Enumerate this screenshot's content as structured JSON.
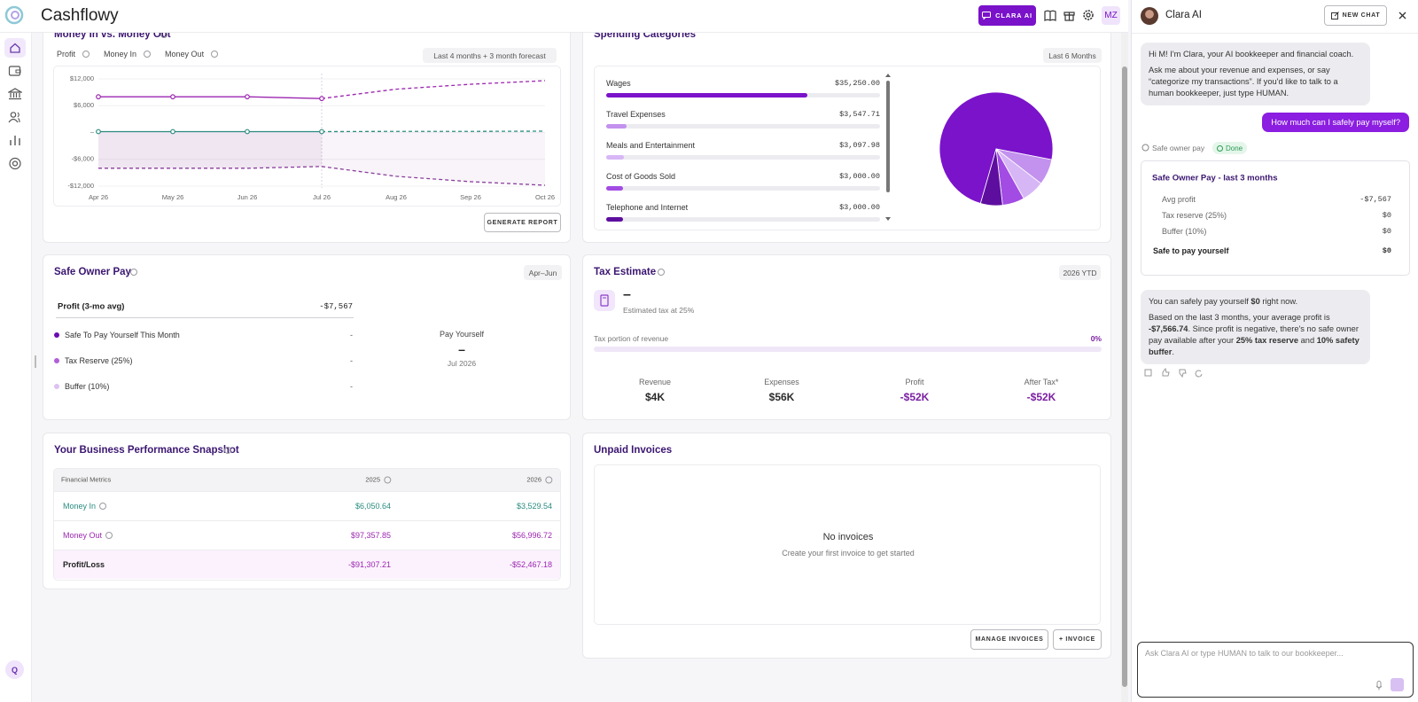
{
  "header": {
    "brand": "Cashflowy",
    "clara_button": "CLARA AI",
    "avatar": "MZ"
  },
  "sidebar": {
    "user_badge": "Q"
  },
  "chart_data": [
    {
      "type": "line",
      "title": "Money In vs. Money Out",
      "subtitle": "Last 4 months + 3 month forecast",
      "categories": [
        "Apr 26",
        "May 26",
        "Jun 26",
        "Jul 26",
        "Aug 26",
        "Sep 26",
        "Oct 26"
      ],
      "series": [
        {
          "name": "Profit",
          "color": "#8a3d9c",
          "dashed": true,
          "area": true,
          "values": [
            -8000,
            -8000,
            -8000,
            -7600,
            null,
            null,
            null
          ],
          "forecast": [
            null,
            null,
            null,
            -7600,
            -9800,
            -11000,
            -11800
          ]
        },
        {
          "name": "Money In",
          "color": "#2e8b80",
          "markers": true,
          "values": [
            200,
            200,
            200,
            200,
            null,
            null,
            null
          ],
          "forecast": [
            null,
            null,
            null,
            200,
            250,
            250,
            300
          ]
        },
        {
          "name": "Money Out",
          "color": "#9c27b0",
          "markers": true,
          "values": [
            8000,
            8000,
            8000,
            7600,
            null,
            null,
            null
          ],
          "forecast": [
            null,
            null,
            null,
            7600,
            9700,
            10800,
            11600
          ]
        }
      ],
      "ylim": [
        -12000,
        12000
      ],
      "yticks": [
        {
          "value": 12000,
          "label": "$12,000"
        },
        {
          "value": 6000,
          "label": "$6,000"
        },
        {
          "value": 0,
          "label": "–"
        },
        {
          "value": -6000,
          "label": "-$6,000"
        },
        {
          "value": -12000,
          "label": "-$12,000"
        }
      ],
      "grid": true,
      "legend": "top-left"
    },
    {
      "type": "pie",
      "title": "Spending Categories",
      "subtitle": "Last 6 Months",
      "categories": [
        "Wages",
        "Travel Expenses",
        "Meals and Entertainment",
        "Cost of Goods Sold",
        "Telephone and Internet"
      ],
      "values": [
        35250,
        3547.71,
        3097.98,
        3000,
        3000
      ],
      "value_labels": [
        "$35,250.00",
        "$3,547.71",
        "$3,097.98",
        "$3,000.00",
        "$3,000.00"
      ],
      "colors": [
        "#7b13ca",
        "#c391ee",
        "#d7b6f6",
        "#a24ce3",
        "#5d0e9f"
      ]
    }
  ],
  "money_card": {
    "button": "GENERATE REPORT"
  },
  "safe_owner_pay": {
    "title": "Safe Owner Pay",
    "period": "Apr–Jun",
    "profit_label": "Profit (3-mo avg)",
    "profit_value": "-$7,567",
    "items": [
      {
        "label": "Safe To Pay Yourself This Month",
        "value": "-",
        "color": "#6a0dad"
      },
      {
        "label": "Tax Reserve (25%)",
        "value": "-",
        "color": "#b35fd8"
      },
      {
        "label": "Buffer (10%)",
        "value": "-",
        "color": "#dcc2f2"
      }
    ],
    "pay_label": "Pay Yourself",
    "pay_value": "–",
    "pay_date": "Jul 2026"
  },
  "tax_estimate": {
    "title": "Tax Estimate",
    "period": "2026 YTD",
    "amount": "–",
    "note": "Estimated tax at 25%",
    "portion_label": "Tax portion of revenue",
    "portion_value": "0%",
    "stats": [
      {
        "label": "Revenue",
        "value": "$4K",
        "color": "#2b2b2b"
      },
      {
        "label": "Expenses",
        "value": "$56K",
        "color": "#2b2b2b"
      },
      {
        "label": "Profit",
        "value": "-$52K",
        "color": "#7b1fa2"
      },
      {
        "label": "After Tax*",
        "value": "-$52K",
        "color": "#7b1fa2"
      }
    ]
  },
  "snapshot": {
    "title": "Your Business Performance Snapshot",
    "header": [
      "Financial Metrics",
      "2025",
      "2026"
    ],
    "rows": [
      {
        "cells": [
          "Money In",
          "$6,050.64",
          "$3,529.54"
        ],
        "color": "#2a8c80",
        "value_color": "#2a8c80",
        "info": true
      },
      {
        "cells": [
          "Money Out",
          "$97,357.85",
          "$56,996.72"
        ],
        "color": "#9c27b0",
        "value_color": "#9c27b0",
        "info": true
      },
      {
        "cells": [
          "Profit/Loss",
          "-$91,307.21",
          "-$52,467.18"
        ],
        "color": "#222222",
        "value_color": "#9c27b0",
        "bold": true
      }
    ]
  },
  "invoices": {
    "title": "Unpaid Invoices",
    "empty_title": "No invoices",
    "empty_text": "Create your first invoice to get started",
    "manage_button": "MANAGE INVOICES",
    "add_button": "+ INVOICE"
  },
  "chat": {
    "title": "Clara AI",
    "new_chat": "NEW CHAT",
    "greeting": [
      "Hi M! I'm Clara, your AI bookkeeper and financial coach.",
      "Ask me about your revenue and expenses, or say “categorize my transactions”. If you'd like to talk to a human bookkeeper, just type HUMAN."
    ],
    "user_message": "How much can I safely pay myself?",
    "tool": {
      "label": "Safe owner pay",
      "status": "Done"
    },
    "summary": {
      "title": "Safe Owner Pay - last 3 months",
      "rows": [
        {
          "label": "Avg profit",
          "value": "-$7,567"
        },
        {
          "label": "Tax reserve (25%)",
          "value": "$0"
        },
        {
          "label": "Buffer (10%)",
          "value": "$0"
        },
        {
          "label": "Safe to pay yourself",
          "value": "$0",
          "bold": true
        }
      ]
    },
    "reply": [
      [
        {
          "text": "You can safely pay yourself "
        },
        {
          "text": "$0",
          "bold": true
        },
        {
          "text": " right now."
        }
      ],
      [
        {
          "text": "Based on the last 3 months, your average profit is "
        },
        {
          "text": "-$7,566.74",
          "bold": true
        },
        {
          "text": ". Since profit is negative, there's no safe owner pay available after your "
        },
        {
          "text": "25% tax reserve",
          "bold": true
        },
        {
          "text": " and "
        },
        {
          "text": "10% safety buffer",
          "bold": true
        },
        {
          "text": "."
        }
      ]
    ],
    "input_placeholder": "Ask Clara AI or type HUMAN to talk to our bookkeeper..."
  }
}
